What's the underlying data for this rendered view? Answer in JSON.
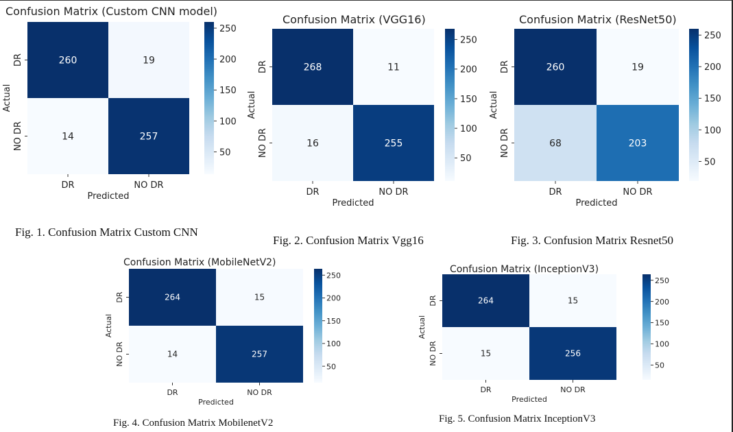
{
  "captions": {
    "fig1": "Fig. 1.  Confusion Matrix Custom CNN",
    "fig2": "Fig. 2.  Confusion Matrix Vgg16",
    "fig3": "Fig. 3.  Confusion Matrix Resnet50",
    "fig4": "Fig. 4.  Confusion Matrix MobilenetV2",
    "fig5": "Fig. 5.  Confusion Matrix InceptionV3"
  },
  "chart_data": [
    {
      "type": "heatmap",
      "title": "Confusion Matrix (Custom CNN model)",
      "xlabel": "Predicted",
      "ylabel": "Actual",
      "x_categories": [
        "DR",
        "NO DR"
      ],
      "y_categories": [
        "DR",
        "NO DR"
      ],
      "values": [
        [
          260,
          19
        ],
        [
          14,
          257
        ]
      ],
      "colorbar": {
        "min": 14,
        "max": 260,
        "ticks": [
          50,
          100,
          150,
          200,
          250
        ],
        "tick_labels": [
          "50",
          "100",
          "150",
          "200",
          "250"
        ]
      },
      "colormap": "Blues"
    },
    {
      "type": "heatmap",
      "title": "Confusion Matrix (VGG16)",
      "xlabel": "Predicted",
      "ylabel": "Actual",
      "x_categories": [
        "DR",
        "NO DR"
      ],
      "y_categories": [
        "DR",
        "NO DR"
      ],
      "values": [
        [
          268,
          11
        ],
        [
          16,
          255
        ]
      ],
      "colorbar": {
        "min": 11,
        "max": 268,
        "ticks": [
          50,
          100,
          150,
          200,
          250
        ],
        "tick_labels": [
          "50",
          "100",
          "150",
          "200",
          "250"
        ]
      },
      "colormap": "Blues"
    },
    {
      "type": "heatmap",
      "title": "Confusion Matrix (ResNet50)",
      "xlabel": "Predicted",
      "ylabel": "Actual",
      "x_categories": [
        "DR",
        "NO DR"
      ],
      "y_categories": [
        "DR",
        "NO DR"
      ],
      "values": [
        [
          260,
          19
        ],
        [
          68,
          203
        ]
      ],
      "colorbar": {
        "min": 19,
        "max": 260,
        "ticks": [
          50,
          100,
          150,
          200,
          250
        ],
        "tick_labels": [
          "50",
          "100",
          "150",
          "200",
          "250"
        ]
      },
      "colormap": "Blues"
    },
    {
      "type": "heatmap",
      "title": "Confusion Matrix (MobileNetV2)",
      "xlabel": "Predicted",
      "ylabel": "Actual",
      "x_categories": [
        "DR",
        "NO DR"
      ],
      "y_categories": [
        "DR",
        "NO DR"
      ],
      "values": [
        [
          264,
          15
        ],
        [
          14,
          257
        ]
      ],
      "colorbar": {
        "min": 14,
        "max": 264,
        "ticks": [
          50,
          100,
          150,
          200,
          250
        ],
        "tick_labels": [
          "50",
          "100",
          "150",
          "200",
          "250"
        ]
      },
      "colormap": "Blues"
    },
    {
      "type": "heatmap",
      "title": "Confusion Matrix (InceptionV3)",
      "xlabel": "Predicted",
      "ylabel": "Actual",
      "x_categories": [
        "DR",
        "NO DR"
      ],
      "y_categories": [
        "DR",
        "NO DR"
      ],
      "values": [
        [
          264,
          15
        ],
        [
          15,
          256
        ]
      ],
      "colorbar": {
        "min": 15,
        "max": 264,
        "ticks": [
          50,
          100,
          150,
          200,
          250
        ],
        "tick_labels": [
          "50",
          "100",
          "150",
          "200",
          "250"
        ]
      },
      "colormap": "Blues"
    }
  ]
}
